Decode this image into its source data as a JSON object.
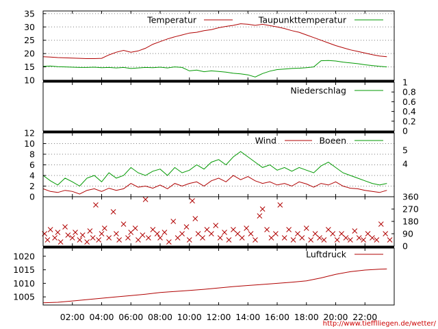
{
  "url": "http://www.tiefflliegen.de/wetter/",
  "x_labels": [
    "02:00",
    "04:00",
    "06:00",
    "08:00",
    "10:00",
    "12:00",
    "14:00",
    "16:00",
    "18:00",
    "20:00",
    "22:00"
  ],
  "colors": {
    "red": "#b00000",
    "green": "#009900",
    "grid": "#7a7a7a"
  },
  "chart_data": [
    {
      "type": "line",
      "x_hours": [
        0,
        0.5,
        1,
        1.5,
        2,
        2.5,
        3,
        3.5,
        4,
        4.5,
        5,
        5.5,
        6,
        6.5,
        7,
        7.5,
        8,
        8.5,
        9,
        9.5,
        10,
        10.5,
        11,
        11.5,
        12,
        12.5,
        13,
        13.5,
        14,
        14.5,
        15,
        15.5,
        16,
        16.5,
        17,
        17.5,
        18,
        18.5,
        19,
        19.5,
        20,
        20.5,
        21,
        21.5,
        22,
        22.5,
        23,
        23.5
      ],
      "ylim": [
        10,
        36
      ],
      "yticks": [
        10,
        15,
        20,
        25,
        30,
        35
      ],
      "series": [
        {
          "name": "Temperatur",
          "color": "#b00000",
          "values": [
            18.8,
            18.7,
            18.5,
            18.4,
            18.3,
            18.2,
            18.1,
            18.1,
            18.2,
            19.5,
            20.5,
            21.2,
            20.5,
            21.0,
            22.0,
            23.5,
            24.5,
            25.5,
            26.3,
            27.0,
            27.7,
            28.0,
            28.6,
            29.0,
            29.7,
            30.2,
            30.6,
            31.2,
            31.0,
            30.6,
            31.0,
            30.5,
            30.0,
            29.4,
            28.6,
            28.0,
            27.0,
            26.0,
            25.0,
            24.0,
            23.0,
            22.2,
            21.4,
            20.8,
            20.2,
            19.6,
            19.1,
            18.8
          ]
        },
        {
          "name": "Taupunkttemperatur",
          "color": "#009900",
          "values": [
            15.2,
            15.3,
            15.1,
            15.0,
            14.9,
            14.8,
            14.8,
            14.9,
            14.7,
            14.8,
            14.6,
            14.8,
            14.4,
            14.6,
            14.8,
            14.7,
            14.9,
            14.6,
            15.0,
            14.8,
            13.5,
            13.8,
            13.2,
            13.5,
            13.3,
            13.0,
            12.6,
            12.4,
            12.0,
            11.2,
            12.5,
            13.4,
            14.0,
            14.2,
            14.4,
            14.5,
            14.7,
            15.0,
            17.3,
            17.4,
            17.2,
            16.8,
            16.5,
            16.2,
            15.8,
            15.5,
            15.2,
            15.0
          ]
        }
      ]
    },
    {
      "type": "line",
      "ylim": [
        0,
        1
      ],
      "yticks": [
        "0",
        "0.2",
        "0.4",
        "0.6",
        "0.8",
        "1"
      ],
      "series": [
        {
          "name": "Niederschlag",
          "color": "#009900",
          "values": [
            0
          ]
        }
      ]
    },
    {
      "type": "line",
      "x_hours": [
        0,
        0.5,
        1,
        1.5,
        2,
        2.5,
        3,
        3.5,
        4,
        4.5,
        5,
        5.5,
        6,
        6.5,
        7,
        7.5,
        8,
        8.5,
        9,
        9.5,
        10,
        10.5,
        11,
        11.5,
        12,
        12.5,
        13,
        13.5,
        14,
        14.5,
        15,
        15.5,
        16,
        16.5,
        17,
        17.5,
        18,
        18.5,
        19,
        19.5,
        20,
        20.5,
        21,
        21.5,
        22,
        22.5,
        23,
        23.5
      ],
      "ylim": [
        0,
        12
      ],
      "yticks": [
        0,
        2,
        4,
        6,
        8,
        10,
        12
      ],
      "right_ticks": [
        "4",
        "5"
      ],
      "series": [
        {
          "name": "Wind",
          "color": "#b00000",
          "values": [
            1.5,
            1.0,
            0.8,
            1.2,
            1.0,
            0.5,
            1.2,
            1.5,
            1.0,
            1.6,
            1.2,
            1.5,
            2.5,
            1.8,
            2.0,
            1.6,
            2.2,
            1.5,
            2.5,
            2.0,
            2.5,
            2.8,
            2.0,
            3.0,
            3.5,
            2.8,
            4.0,
            3.2,
            3.8,
            3.0,
            2.5,
            2.8,
            2.2,
            2.5,
            2.0,
            2.8,
            2.4,
            1.8,
            2.5,
            2.2,
            2.8,
            2.0,
            1.6,
            1.5,
            1.2,
            1.0,
            0.8,
            1.2
          ]
        },
        {
          "name": "Boeen",
          "color": "#009900",
          "values": [
            4.0,
            3.0,
            2.2,
            3.5,
            2.8,
            2.0,
            3.5,
            4.0,
            2.8,
            4.5,
            3.5,
            4.0,
            5.5,
            4.5,
            4.0,
            4.8,
            5.2,
            4.0,
            5.5,
            4.5,
            5.0,
            6.0,
            5.2,
            6.5,
            7.0,
            6.0,
            7.5,
            8.5,
            7.5,
            6.5,
            5.5,
            6.0,
            5.0,
            5.5,
            4.8,
            5.5,
            5.0,
            4.5,
            5.8,
            6.5,
            5.5,
            4.5,
            4.0,
            3.5,
            3.0,
            2.5,
            2.2,
            2.5
          ]
        }
      ]
    },
    {
      "type": "scatter",
      "ylim": [
        0,
        360
      ],
      "yticks": [
        0,
        90,
        180,
        270,
        360
      ],
      "series": [
        {
          "name": "",
          "color": "#b00000",
          "points": [
            [
              0.1,
              90
            ],
            [
              0.3,
              45
            ],
            [
              0.5,
              120
            ],
            [
              0.8,
              60
            ],
            [
              1.0,
              100
            ],
            [
              1.2,
              30
            ],
            [
              1.5,
              140
            ],
            [
              1.7,
              80
            ],
            [
              2.0,
              60
            ],
            [
              2.2,
              100
            ],
            [
              2.5,
              45
            ],
            [
              2.7,
              80
            ],
            [
              3.0,
              30
            ],
            [
              3.2,
              110
            ],
            [
              3.4,
              60
            ],
            [
              3.6,
              300
            ],
            [
              3.8,
              45
            ],
            [
              4.0,
              90
            ],
            [
              4.2,
              130
            ],
            [
              4.5,
              60
            ],
            [
              4.8,
              250
            ],
            [
              5.0,
              90
            ],
            [
              5.2,
              45
            ],
            [
              5.5,
              160
            ],
            [
              5.8,
              60
            ],
            [
              6.0,
              100
            ],
            [
              6.3,
              130
            ],
            [
              6.5,
              45
            ],
            [
              6.8,
              80
            ],
            [
              7.0,
              340
            ],
            [
              7.2,
              60
            ],
            [
              7.5,
              120
            ],
            [
              7.8,
              90
            ],
            [
              8.0,
              60
            ],
            [
              8.3,
              100
            ],
            [
              8.6,
              30
            ],
            [
              8.9,
              180
            ],
            [
              9.2,
              60
            ],
            [
              9.5,
              90
            ],
            [
              9.8,
              140
            ],
            [
              10.0,
              45
            ],
            [
              10.2,
              330
            ],
            [
              10.4,
              200
            ],
            [
              10.6,
              90
            ],
            [
              10.9,
              60
            ],
            [
              11.2,
              120
            ],
            [
              11.5,
              90
            ],
            [
              11.8,
              150
            ],
            [
              12.1,
              60
            ],
            [
              12.4,
              100
            ],
            [
              12.7,
              45
            ],
            [
              13.0,
              120
            ],
            [
              13.3,
              90
            ],
            [
              13.6,
              60
            ],
            [
              13.9,
              130
            ],
            [
              14.2,
              90
            ],
            [
              14.5,
              45
            ],
            [
              14.8,
              220
            ],
            [
              15.0,
              270
            ],
            [
              15.3,
              120
            ],
            [
              15.6,
              60
            ],
            [
              15.9,
              90
            ],
            [
              16.2,
              300
            ],
            [
              16.5,
              60
            ],
            [
              16.8,
              120
            ],
            [
              17.1,
              45
            ],
            [
              17.4,
              90
            ],
            [
              17.7,
              60
            ],
            [
              18.0,
              130
            ],
            [
              18.3,
              45
            ],
            [
              18.6,
              90
            ],
            [
              18.9,
              60
            ],
            [
              19.2,
              45
            ],
            [
              19.5,
              120
            ],
            [
              19.8,
              90
            ],
            [
              20.1,
              45
            ],
            [
              20.4,
              90
            ],
            [
              20.7,
              60
            ],
            [
              21.0,
              45
            ],
            [
              21.3,
              110
            ],
            [
              21.6,
              60
            ],
            [
              21.9,
              45
            ],
            [
              22.2,
              90
            ],
            [
              22.5,
              60
            ],
            [
              22.8,
              45
            ],
            [
              23.1,
              160
            ],
            [
              23.4,
              90
            ],
            [
              23.7,
              45
            ]
          ]
        }
      ]
    },
    {
      "type": "line",
      "x_hours": [
        0,
        1,
        2,
        3,
        4,
        5,
        6,
        7,
        8,
        9,
        10,
        11,
        12,
        13,
        14,
        15,
        16,
        17,
        18,
        19,
        20,
        21,
        22,
        23,
        23.5
      ],
      "ylim": [
        1002,
        1023
      ],
      "yticks": [
        1005,
        1010,
        1015,
        1020
      ],
      "series": [
        {
          "name": "Luftdruck",
          "color": "#b00000",
          "values": [
            1002.8,
            1003.0,
            1003.5,
            1004.0,
            1004.5,
            1005.0,
            1005.5,
            1006.0,
            1006.6,
            1007.0,
            1007.4,
            1007.8,
            1008.3,
            1008.8,
            1009.2,
            1009.6,
            1010.0,
            1010.4,
            1010.9,
            1012.0,
            1013.3,
            1014.3,
            1014.9,
            1015.2,
            1015.3
          ]
        }
      ]
    }
  ]
}
